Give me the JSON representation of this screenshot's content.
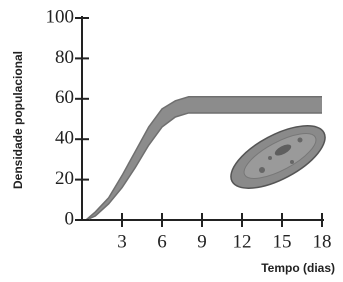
{
  "chart_data": {
    "type": "band",
    "x_label": "Tempo (dias)",
    "y_label": "Densidade populacional",
    "x": [
      0.3,
      1,
      2,
      3,
      4,
      5,
      6,
      7,
      8,
      9,
      10,
      12,
      14,
      16,
      18
    ],
    "series": [
      {
        "color": "#6f6f6f",
        "values": [
          0,
          4,
          11,
          22,
          34,
          46,
          55,
          59,
          61,
          61,
          61,
          61,
          61,
          61,
          61
        ]
      },
      {
        "color": "#6f6f6f",
        "values": [
          0,
          2,
          8,
          16,
          26,
          37,
          46,
          51,
          53,
          53,
          53,
          53,
          53,
          53,
          53
        ]
      }
    ],
    "fill": "#8c8c8c",
    "xlim": [
      0,
      18
    ],
    "xticks": [
      3,
      6,
      9,
      12,
      15,
      18
    ],
    "ylim": [
      0,
      100
    ],
    "yticks": [
      0,
      20,
      40,
      60,
      80,
      100
    ]
  }
}
